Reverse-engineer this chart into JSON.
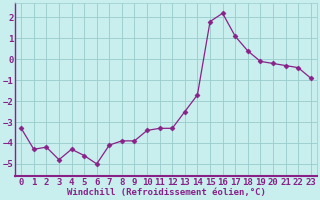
{
  "x": [
    0,
    1,
    2,
    3,
    4,
    5,
    6,
    7,
    8,
    9,
    10,
    11,
    12,
    13,
    14,
    15,
    16,
    17,
    18,
    19,
    20,
    21,
    22,
    23
  ],
  "y": [
    -3.3,
    -4.3,
    -4.2,
    -4.8,
    -4.3,
    -4.6,
    -5.0,
    -4.1,
    -3.9,
    -3.9,
    -3.4,
    -3.3,
    -3.3,
    -2.5,
    -1.7,
    1.8,
    2.2,
    1.1,
    0.4,
    -0.1,
    -0.2,
    -0.3,
    -0.4,
    -0.9
  ],
  "line_color": "#882288",
  "marker": "D",
  "marker_size": 2.5,
  "bg_color": "#c8eeee",
  "grid_color": "#99cccc",
  "xlabel": "Windchill (Refroidissement éolien,°C)",
  "xlabel_fontsize": 6.5,
  "tick_fontsize": 6.5,
  "xlim": [
    -0.5,
    23.5
  ],
  "ylim": [
    -5.6,
    2.7
  ],
  "yticks": [
    -5,
    -4,
    -3,
    -2,
    -1,
    0,
    1,
    2
  ],
  "xticks": [
    0,
    1,
    2,
    3,
    4,
    5,
    6,
    7,
    8,
    9,
    10,
    11,
    12,
    13,
    14,
    15,
    16,
    17,
    18,
    19,
    20,
    21,
    22,
    23
  ],
  "spine_color": "#882288",
  "label_color": "#882288"
}
